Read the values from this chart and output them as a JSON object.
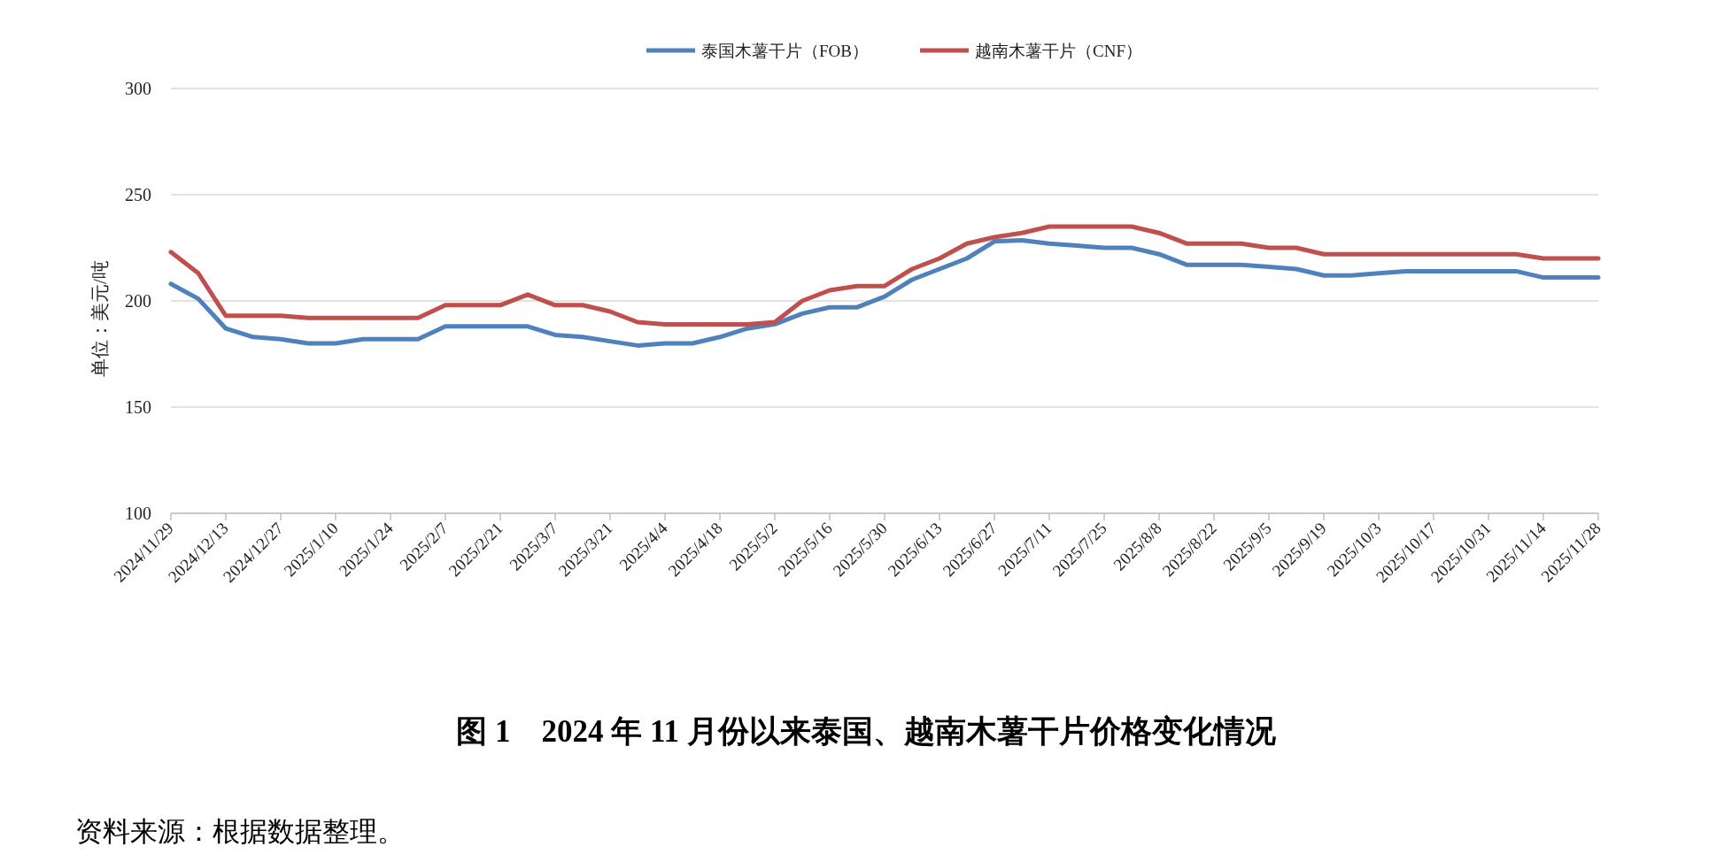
{
  "chart_data": {
    "type": "line",
    "title": "图 1　2024 年 11 月份以来泰国、越南木薯干片价格变化情况",
    "ylabel": "单位：美元/吨",
    "categories": [
      "2024/11/29",
      null,
      "2024/12/13",
      null,
      "2024/12/27",
      null,
      "2025/1/10",
      null,
      "2025/1/24",
      null,
      "2025/2/7",
      null,
      "2025/2/21",
      null,
      "2025/3/7",
      null,
      "2025/3/21",
      null,
      "2025/4/4",
      null,
      "2025/4/18",
      null,
      "2025/5/2",
      null,
      "2025/5/16",
      null,
      "2025/5/30",
      null,
      "2025/6/13",
      null,
      "2025/6/27",
      null,
      "2025/7/11",
      null,
      "2025/7/25",
      null,
      "2025/8/8",
      null,
      "2025/8/22",
      null,
      "2025/9/5",
      null,
      "2025/9/19",
      null,
      "2025/10/3",
      null,
      "2025/10/17",
      null,
      "2025/10/31",
      null,
      "2025/11/14",
      null,
      "2025/11/28"
    ],
    "series": [
      {
        "name": "泰国木薯干片（FOB）",
        "color": "#4f81bd",
        "values": [
          208,
          201,
          187,
          183,
          182,
          180,
          180,
          182,
          182,
          182,
          188,
          188,
          188,
          188,
          184,
          183,
          181,
          179,
          180,
          180,
          183,
          187,
          189,
          194,
          197,
          197,
          202,
          210,
          215,
          220,
          228,
          228.5,
          227,
          226,
          225,
          225,
          222,
          217,
          217,
          217,
          216,
          215,
          212,
          212,
          213,
          214,
          214,
          214,
          214,
          214,
          211,
          211,
          211
        ]
      },
      {
        "name": "越南木薯干片（CNF）",
        "color": "#c0504d",
        "values": [
          223,
          213,
          193,
          193,
          193,
          192,
          192,
          192,
          192,
          192,
          198,
          198,
          198,
          203,
          198,
          198,
          195,
          190,
          189,
          189,
          189,
          189,
          190,
          200,
          205,
          207,
          207,
          215,
          220,
          227,
          230,
          232,
          235,
          235,
          235,
          235,
          232,
          227,
          227,
          227,
          225,
          225,
          222,
          222,
          222,
          222,
          222,
          222,
          222,
          222,
          220,
          220,
          220
        ]
      }
    ],
    "ylim": [
      100,
      300
    ],
    "yticks": [
      100,
      150,
      200,
      250,
      300
    ],
    "grid": "y",
    "legend": "top",
    "marker": "none",
    "line_style": "solid",
    "annotations": [
      "资料来源：根据数据整理。"
    ]
  }
}
